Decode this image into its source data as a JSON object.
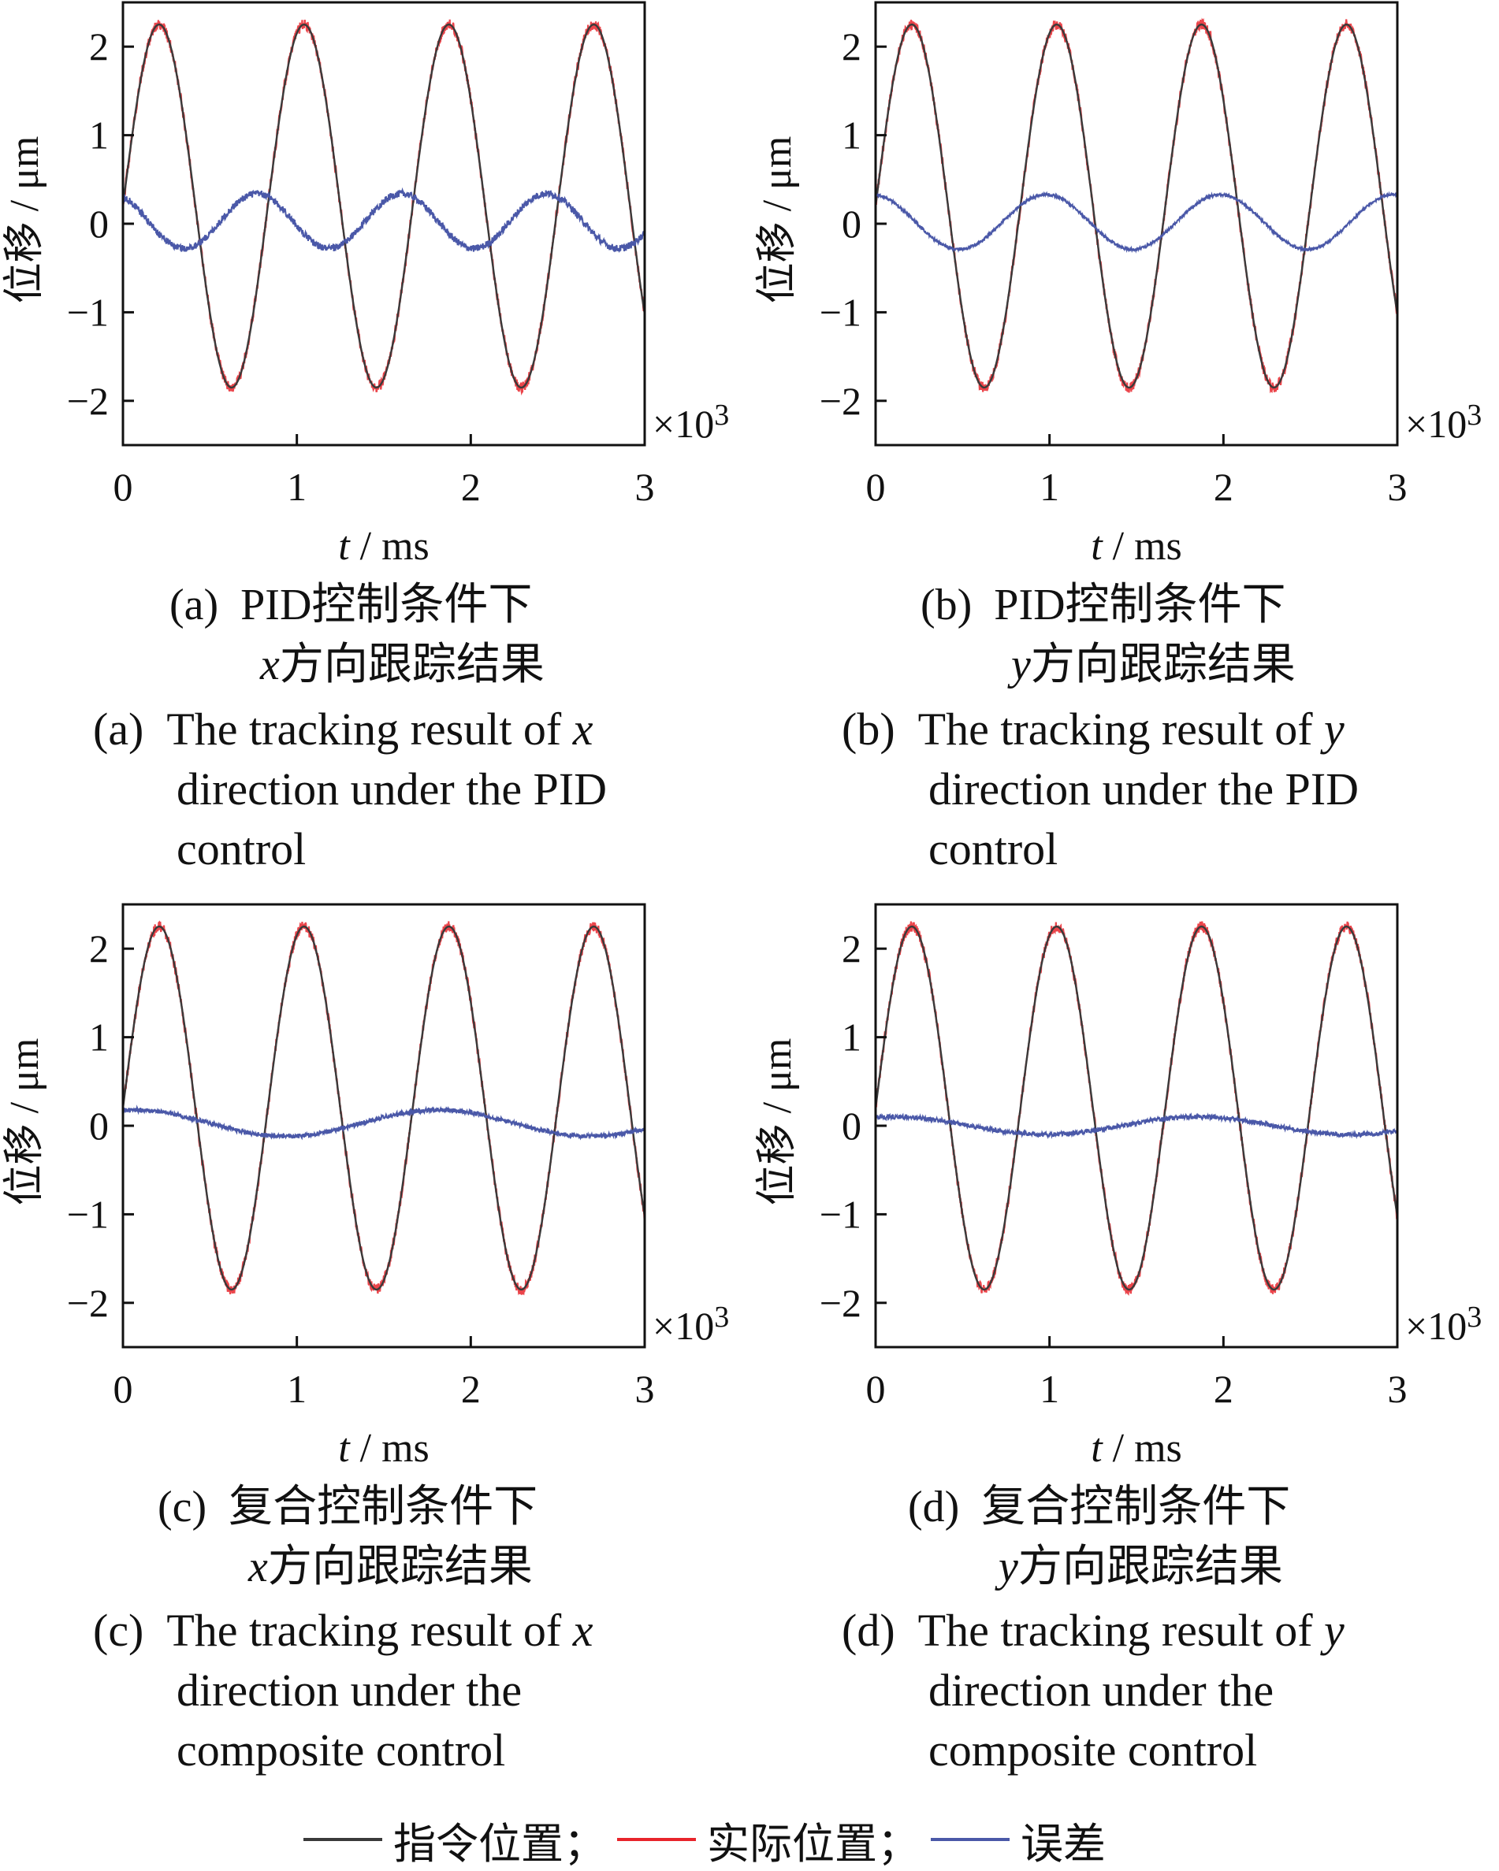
{
  "chart_data": [
    {
      "type": "line",
      "panel": "a",
      "xlabel_italic": "t",
      "xlabel_unit": " / ms",
      "ylabel": "位移 / μm",
      "x_multiplier": "×10",
      "x_multiplier_exp": "3",
      "xlim": [
        0,
        3
      ],
      "ylim": [
        -2.5,
        2.5
      ],
      "xticks": [
        "0",
        "1",
        "2",
        "3"
      ],
      "yticks": [
        "−2",
        "−1",
        "0",
        "1",
        "2"
      ],
      "series": [
        {
          "key": "command",
          "color": "#3a3a3a",
          "kind": "sine",
          "amplitude": 2.05,
          "offset": 0.2,
          "period": 0.833,
          "phase": 0.0
        },
        {
          "key": "actual",
          "color": "#e8242b",
          "kind": "sine",
          "amplitude": 2.05,
          "offset": 0.2,
          "period": 0.833,
          "phase": 0.0,
          "noise": 0.06
        },
        {
          "key": "error",
          "color": "#4a58a8",
          "kind": "sine",
          "amplitude": 0.31,
          "offset": 0.03,
          "period": 0.833,
          "phase": 2.05,
          "noise": 0.04
        }
      ],
      "caption_cn_prefix": "(a)",
      "caption_cn_line1": "PID控制条件下",
      "caption_cn_var": "x",
      "caption_cn_line2": "方向跟踪结果",
      "caption_en_prefix": "(a)",
      "caption_en_line1": "The tracking result of",
      "caption_en_var": "x",
      "caption_en_line2": "direction under the PID",
      "caption_en_line3": "control"
    },
    {
      "type": "line",
      "panel": "b",
      "xlabel_italic": "t",
      "xlabel_unit": " / ms",
      "ylabel": "位移 / μm",
      "x_multiplier": "×10",
      "x_multiplier_exp": "3",
      "xlim": [
        0,
        3
      ],
      "ylim": [
        -2.5,
        2.5
      ],
      "xticks": [
        "0",
        "1",
        "2",
        "3"
      ],
      "yticks": [
        "−2",
        "−1",
        "0",
        "1",
        "2"
      ],
      "series": [
        {
          "key": "command",
          "color": "#3a3a3a",
          "kind": "sine",
          "amplitude": 2.05,
          "offset": 0.2,
          "period": 0.833,
          "phase": 0.0
        },
        {
          "key": "actual",
          "color": "#e8242b",
          "kind": "sine",
          "amplitude": 2.05,
          "offset": 0.2,
          "period": 0.833,
          "phase": 0.0,
          "noise": 0.06
        },
        {
          "key": "error",
          "color": "#4a58a8",
          "kind": "sine",
          "amplitude": 0.31,
          "offset": 0.02,
          "period": 1.0,
          "phase": 1.7,
          "noise": 0.015
        }
      ],
      "caption_cn_prefix": "(b)",
      "caption_cn_line1": "PID控制条件下",
      "caption_cn_var": "y",
      "caption_cn_line2": "方向跟踪结果",
      "caption_en_prefix": "(b)",
      "caption_en_line1": "The tracking result of",
      "caption_en_var": "y",
      "caption_en_line2": "direction under the PID",
      "caption_en_line3": "control"
    },
    {
      "type": "line",
      "panel": "c",
      "xlabel_italic": "t",
      "xlabel_unit": " / ms",
      "ylabel": "位移 / μm",
      "x_multiplier": "×10",
      "x_multiplier_exp": "3",
      "xlim": [
        0,
        3
      ],
      "ylim": [
        -2.5,
        2.5
      ],
      "xticks": [
        "0",
        "1",
        "2",
        "3"
      ],
      "yticks": [
        "−2",
        "−1",
        "0",
        "1",
        "2"
      ],
      "series": [
        {
          "key": "command",
          "color": "#3a3a3a",
          "kind": "sine",
          "amplitude": 2.05,
          "offset": 0.2,
          "period": 0.833,
          "phase": 0.0
        },
        {
          "key": "actual",
          "color": "#e8242b",
          "kind": "sine",
          "amplitude": 2.05,
          "offset": 0.2,
          "period": 0.833,
          "phase": 0.0,
          "noise": 0.06
        },
        {
          "key": "error",
          "color": "#4a58a8",
          "kind": "sine",
          "amplitude": 0.15,
          "offset": 0.03,
          "period": 1.75,
          "phase": 1.35,
          "noise": 0.025
        }
      ],
      "caption_cn_prefix": "(c)",
      "caption_cn_line1": "复合控制条件下",
      "caption_cn_var": "x",
      "caption_cn_line2": "方向跟踪结果",
      "caption_en_prefix": "(c)",
      "caption_en_line1": "The tracking result of",
      "caption_en_var": "x",
      "caption_en_line2": "direction under the",
      "caption_en_line3": "composite control"
    },
    {
      "type": "line",
      "panel": "d",
      "xlabel_italic": "t",
      "xlabel_unit": " / ms",
      "ylabel": "位移 / μm",
      "x_multiplier": "×10",
      "x_multiplier_exp": "3",
      "xlim": [
        0,
        3
      ],
      "ylim": [
        -2.5,
        2.5
      ],
      "xticks": [
        "0",
        "1",
        "2",
        "3"
      ],
      "yticks": [
        "−2",
        "−1",
        "0",
        "1",
        "2"
      ],
      "series": [
        {
          "key": "command",
          "color": "#3a3a3a",
          "kind": "sine",
          "amplitude": 2.05,
          "offset": 0.2,
          "period": 0.833,
          "phase": 0.0
        },
        {
          "key": "actual",
          "color": "#e8242b",
          "kind": "sine",
          "amplitude": 2.05,
          "offset": 0.2,
          "period": 0.833,
          "phase": 0.0,
          "noise": 0.06
        },
        {
          "key": "error",
          "color": "#4a58a8",
          "kind": "sine",
          "amplitude": 0.1,
          "offset": 0.0,
          "period": 1.75,
          "phase": 1.2,
          "noise": 0.025
        }
      ],
      "caption_cn_prefix": "(d)",
      "caption_cn_line1": "复合控制条件下",
      "caption_cn_var": "y",
      "caption_cn_line2": "方向跟踪结果",
      "caption_en_prefix": "(d)",
      "caption_en_line1": "The tracking result of",
      "caption_en_var": "y",
      "caption_en_line2": "direction under the",
      "caption_en_line3": "composite control"
    }
  ],
  "legend": {
    "items": [
      {
        "label": "指令位置；",
        "color": "#3a3a3a"
      },
      {
        "label": "实际位置；",
        "color": "#e8242b"
      },
      {
        "label": "误差",
        "color": "#4a58a8"
      }
    ]
  },
  "colors": {
    "command": "#3a3a3a",
    "actual": "#e8242b",
    "error": "#4a58a8",
    "axis": "#111111"
  }
}
